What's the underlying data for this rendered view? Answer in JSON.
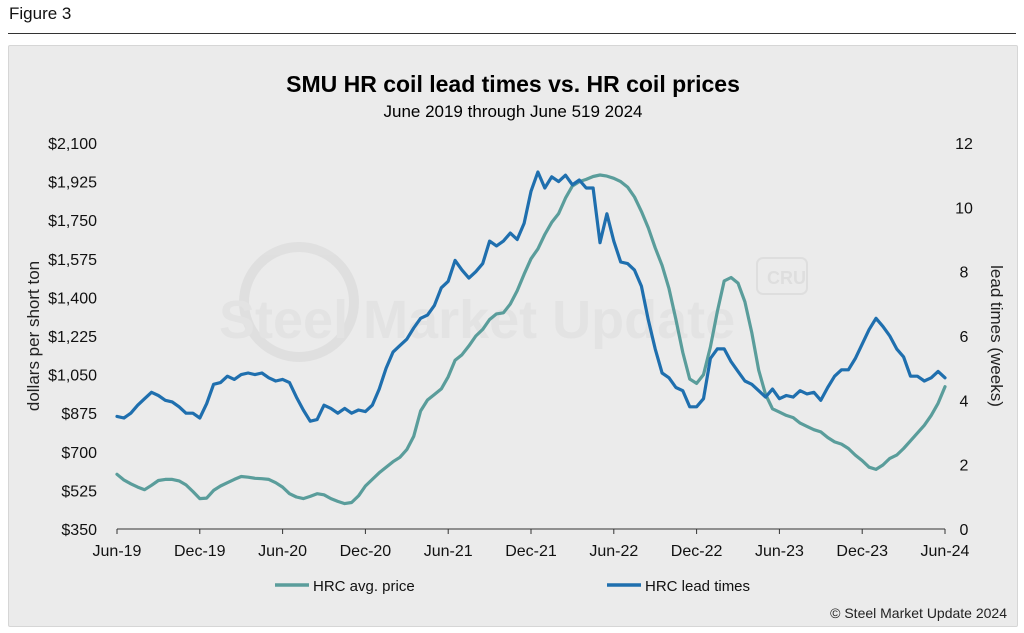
{
  "figure_label": "Figure 3",
  "copyright": "© Steel Market Update 2024",
  "watermark": {
    "text": "Steel Market Update",
    "badge": "CRU"
  },
  "colors": {
    "price_series": "#5a9d9b",
    "lead_series": "#1f6fae",
    "panel": "#ebebeb"
  },
  "chart_data": {
    "type": "line",
    "title": "SMU HR coil lead times vs. HR coil prices",
    "subtitle": "June 2019 through June 519 2024",
    "xlabel": "",
    "x_tick_labels": [
      "Jun-19",
      "Dec-19",
      "Jun-20",
      "Dec-20",
      "Jun-21",
      "Dec-21",
      "Jun-22",
      "Dec-22",
      "Jun-23",
      "Dec-23",
      "Jun-24"
    ],
    "x_range_months": [
      0,
      60
    ],
    "y_left": {
      "label": "dollars per short ton",
      "min": 350,
      "max": 2100,
      "tick_labels": [
        "$350",
        "$525",
        "$700",
        "$875",
        "$1,050",
        "$1,225",
        "$1,400",
        "$1,575",
        "$1,750",
        "$1,925",
        "$2,100"
      ]
    },
    "y_right": {
      "label": "lead times (weeks)",
      "min": 0,
      "max": 12,
      "tick_labels": [
        "0",
        "2",
        "4",
        "6",
        "8",
        "10",
        "12"
      ]
    },
    "series": [
      {
        "name": "HRC avg. price",
        "axis": "left",
        "points": [
          [
            0,
            598
          ],
          [
            0.5,
            572
          ],
          [
            1,
            555
          ],
          [
            1.5,
            540
          ],
          [
            2,
            528
          ],
          [
            2.5,
            548
          ],
          [
            3,
            570
          ],
          [
            3.5,
            575
          ],
          [
            4,
            575
          ],
          [
            4.5,
            568
          ],
          [
            5,
            550
          ],
          [
            5.5,
            520
          ],
          [
            6,
            488
          ],
          [
            6.5,
            490
          ],
          [
            7,
            525
          ],
          [
            7.5,
            545
          ],
          [
            8,
            560
          ],
          [
            8.5,
            575
          ],
          [
            9,
            588
          ],
          [
            9.5,
            585
          ],
          [
            10,
            580
          ],
          [
            10.5,
            578
          ],
          [
            11,
            575
          ],
          [
            11.5,
            560
          ],
          [
            12,
            540
          ],
          [
            12.5,
            510
          ],
          [
            13,
            495
          ],
          [
            13.5,
            488
          ],
          [
            14,
            498
          ],
          [
            14.5,
            510
          ],
          [
            15,
            505
          ],
          [
            15.5,
            488
          ],
          [
            16,
            475
          ],
          [
            16.5,
            465
          ],
          [
            17,
            470
          ],
          [
            17.5,
            500
          ],
          [
            18,
            545
          ],
          [
            18.5,
            575
          ],
          [
            19,
            605
          ],
          [
            19.5,
            630
          ],
          [
            20,
            655
          ],
          [
            20.5,
            675
          ],
          [
            21,
            710
          ],
          [
            21.5,
            770
          ],
          [
            22,
            885
          ],
          [
            22.5,
            935
          ],
          [
            23,
            960
          ],
          [
            23.5,
            985
          ],
          [
            24,
            1040
          ],
          [
            24.5,
            1115
          ],
          [
            25,
            1140
          ],
          [
            25.5,
            1180
          ],
          [
            26,
            1225
          ],
          [
            26.5,
            1255
          ],
          [
            27,
            1300
          ],
          [
            27.5,
            1325
          ],
          [
            28,
            1330
          ],
          [
            28.5,
            1370
          ],
          [
            29,
            1430
          ],
          [
            29.5,
            1505
          ],
          [
            30,
            1575
          ],
          [
            30.5,
            1620
          ],
          [
            31,
            1685
          ],
          [
            31.5,
            1740
          ],
          [
            32,
            1780
          ],
          [
            32.5,
            1850
          ],
          [
            33,
            1905
          ],
          [
            33.5,
            1925
          ],
          [
            34,
            1935
          ],
          [
            34.5,
            1948
          ],
          [
            35,
            1955
          ],
          [
            35.5,
            1950
          ],
          [
            36,
            1940
          ],
          [
            36.5,
            1925
          ],
          [
            37,
            1900
          ],
          [
            37.5,
            1855
          ],
          [
            38,
            1790
          ],
          [
            38.5,
            1715
          ],
          [
            39,
            1625
          ],
          [
            39.5,
            1545
          ],
          [
            40,
            1440
          ],
          [
            40.5,
            1300
          ],
          [
            41,
            1150
          ],
          [
            41.5,
            1030
          ],
          [
            42,
            1010
          ],
          [
            42.5,
            1050
          ],
          [
            43,
            1175
          ],
          [
            43.5,
            1335
          ],
          [
            44,
            1475
          ],
          [
            44.5,
            1490
          ],
          [
            45,
            1465
          ],
          [
            45.5,
            1380
          ],
          [
            46,
            1240
          ],
          [
            46.5,
            1070
          ],
          [
            47,
            960
          ],
          [
            47.5,
            895
          ],
          [
            48,
            880
          ],
          [
            48.5,
            865
          ],
          [
            49,
            855
          ],
          [
            49.5,
            830
          ],
          [
            50,
            815
          ],
          [
            50.5,
            800
          ],
          [
            51,
            790
          ],
          [
            51.5,
            765
          ],
          [
            52,
            745
          ],
          [
            52.5,
            735
          ],
          [
            53,
            715
          ],
          [
            53.5,
            685
          ],
          [
            54,
            660
          ],
          [
            54.5,
            630
          ],
          [
            55,
            620
          ],
          [
            55.5,
            640
          ],
          [
            56,
            670
          ],
          [
            56.5,
            685
          ],
          [
            57,
            715
          ],
          [
            57.5,
            750
          ],
          [
            58,
            785
          ],
          [
            58.5,
            820
          ],
          [
            59,
            865
          ],
          [
            59.5,
            920
          ],
          [
            60,
            995
          ]
        ]
      },
      {
        "name": "HRC lead times",
        "axis": "right",
        "points": [
          [
            0,
            3.5
          ],
          [
            0.5,
            3.45
          ],
          [
            1,
            3.6
          ],
          [
            1.5,
            3.85
          ],
          [
            2,
            4.05
          ],
          [
            2.5,
            4.25
          ],
          [
            3,
            4.15
          ],
          [
            3.5,
            4.0
          ],
          [
            4,
            3.95
          ],
          [
            4.5,
            3.8
          ],
          [
            5,
            3.6
          ],
          [
            5.5,
            3.6
          ],
          [
            6,
            3.45
          ],
          [
            6.5,
            3.9
          ],
          [
            7,
            4.5
          ],
          [
            7.5,
            4.55
          ],
          [
            8,
            4.75
          ],
          [
            8.5,
            4.65
          ],
          [
            9,
            4.8
          ],
          [
            9.5,
            4.85
          ],
          [
            10,
            4.8
          ],
          [
            10.5,
            4.85
          ],
          [
            11,
            4.7
          ],
          [
            11.5,
            4.6
          ],
          [
            12,
            4.65
          ],
          [
            12.5,
            4.55
          ],
          [
            13,
            4.1
          ],
          [
            13.5,
            3.7
          ],
          [
            14,
            3.35
          ],
          [
            14.5,
            3.4
          ],
          [
            15,
            3.85
          ],
          [
            15.5,
            3.75
          ],
          [
            16,
            3.6
          ],
          [
            16.5,
            3.75
          ],
          [
            17,
            3.6
          ],
          [
            17.5,
            3.7
          ],
          [
            18,
            3.65
          ],
          [
            18.5,
            3.85
          ],
          [
            19,
            4.35
          ],
          [
            19.5,
            5.0
          ],
          [
            20,
            5.5
          ],
          [
            20.5,
            5.7
          ],
          [
            21,
            5.9
          ],
          [
            21.5,
            6.25
          ],
          [
            22,
            6.55
          ],
          [
            22.5,
            6.65
          ],
          [
            23,
            6.95
          ],
          [
            23.5,
            7.5
          ],
          [
            24,
            7.7
          ],
          [
            24.5,
            8.35
          ],
          [
            25,
            8.05
          ],
          [
            25.5,
            7.8
          ],
          [
            26,
            8.0
          ],
          [
            26.5,
            8.25
          ],
          [
            27,
            8.95
          ],
          [
            27.5,
            8.8
          ],
          [
            28,
            8.95
          ],
          [
            28.5,
            9.2
          ],
          [
            29,
            9.0
          ],
          [
            29.5,
            9.5
          ],
          [
            30,
            10.5
          ],
          [
            30.5,
            11.1
          ],
          [
            31,
            10.6
          ],
          [
            31.5,
            10.95
          ],
          [
            32,
            10.8
          ],
          [
            32.5,
            11.0
          ],
          [
            33,
            10.7
          ],
          [
            33.5,
            10.85
          ],
          [
            34,
            10.6
          ],
          [
            34.5,
            10.6
          ],
          [
            35,
            8.9
          ],
          [
            35.5,
            9.8
          ],
          [
            36,
            8.95
          ],
          [
            36.5,
            8.3
          ],
          [
            37,
            8.25
          ],
          [
            37.5,
            8.05
          ],
          [
            38,
            7.55
          ],
          [
            38.5,
            6.5
          ],
          [
            39,
            5.6
          ],
          [
            39.5,
            4.85
          ],
          [
            40,
            4.7
          ],
          [
            40.5,
            4.4
          ],
          [
            41,
            4.3
          ],
          [
            41.5,
            3.8
          ],
          [
            42,
            3.8
          ],
          [
            42.5,
            4.05
          ],
          [
            43,
            5.3
          ],
          [
            43.5,
            5.6
          ],
          [
            44,
            5.6
          ],
          [
            44.5,
            5.2
          ],
          [
            45,
            4.9
          ],
          [
            45.5,
            4.6
          ],
          [
            46,
            4.5
          ],
          [
            46.5,
            4.3
          ],
          [
            47,
            4.1
          ],
          [
            47.5,
            4.35
          ],
          [
            48,
            4.05
          ],
          [
            48.5,
            4.15
          ],
          [
            49,
            4.1
          ],
          [
            49.5,
            4.3
          ],
          [
            50,
            4.2
          ],
          [
            50.5,
            4.25
          ],
          [
            51,
            4.0
          ],
          [
            51.5,
            4.4
          ],
          [
            52,
            4.75
          ],
          [
            52.5,
            4.95
          ],
          [
            53,
            4.95
          ],
          [
            53.5,
            5.3
          ],
          [
            54,
            5.75
          ],
          [
            54.5,
            6.2
          ],
          [
            55,
            6.55
          ],
          [
            55.5,
            6.3
          ],
          [
            56,
            6.0
          ],
          [
            56.5,
            5.6
          ],
          [
            57,
            5.35
          ],
          [
            57.5,
            4.75
          ],
          [
            58,
            4.75
          ],
          [
            58.5,
            4.6
          ],
          [
            59,
            4.7
          ],
          [
            59.5,
            4.9
          ],
          [
            60,
            4.7
          ]
        ]
      }
    ],
    "legend": {
      "position": "bottom-center",
      "entries": [
        "HRC avg. price",
        "HRC lead times"
      ]
    },
    "grid": false
  }
}
